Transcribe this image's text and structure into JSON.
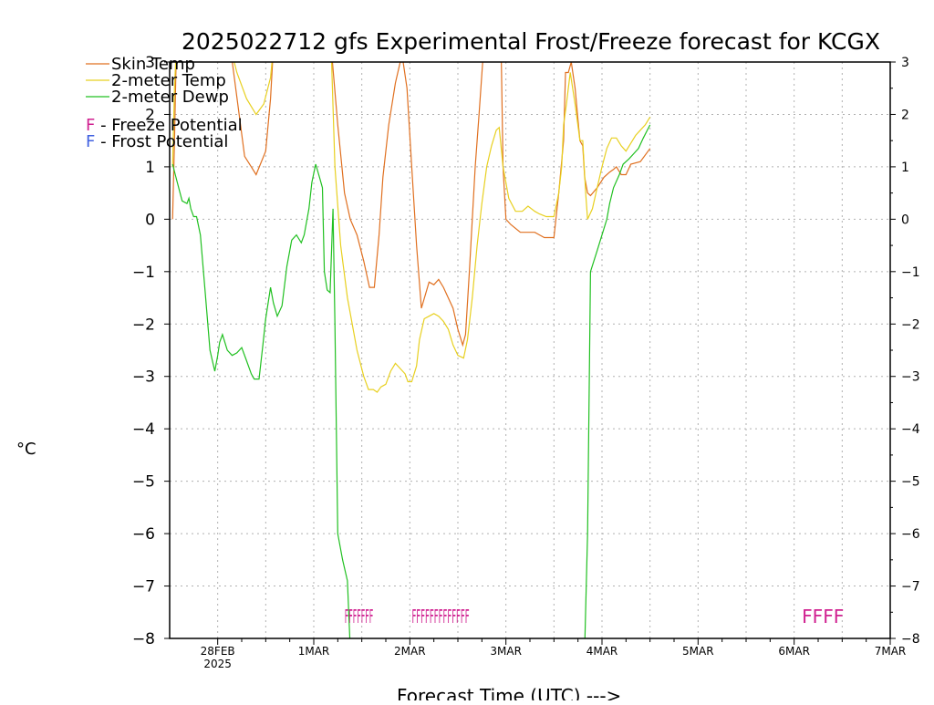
{
  "chart_data": {
    "type": "line",
    "title": "2025022712 gfs Experimental Frost/Freeze forecast for KCGX",
    "ylabel": "°C",
    "xlabel": "Forecast Time (UTC) --->",
    "ylim": [
      -8,
      3
    ],
    "xlim": [
      -0.5,
      7
    ],
    "x_unit": "days since 28FEB 2025 00Z",
    "yticks": [
      -8,
      -7,
      -6,
      -5,
      -4,
      -3,
      -2,
      -1,
      0,
      1,
      2,
      3
    ],
    "xticks": [
      {
        "x": 0,
        "label": "28FEB",
        "sublabel": "2025"
      },
      {
        "x": 1,
        "label": "1MAR"
      },
      {
        "x": 2,
        "label": "2MAR"
      },
      {
        "x": 3,
        "label": "3MAR"
      },
      {
        "x": 4,
        "label": "4MAR"
      },
      {
        "x": 5,
        "label": "5MAR"
      },
      {
        "x": 6,
        "label": "6MAR"
      },
      {
        "x": 7,
        "label": "7MAR"
      }
    ],
    "grid": true,
    "legend_position": "top-left",
    "legend": [
      {
        "label": "Skin Temp",
        "color": "#e07020"
      },
      {
        "label": "2-meter Temp",
        "color": "#e8d020"
      },
      {
        "label": "2-meter Dewp",
        "color": "#20c020"
      }
    ],
    "potential_legend": [
      {
        "letter": "F",
        "text": " - Freeze Potential",
        "color": "#d02090"
      },
      {
        "letter": "F",
        "text": " - Frost Potential",
        "color": "#4060e0"
      }
    ],
    "series": [
      {
        "name": "Skin Temp",
        "color": "#e07020",
        "points": [
          [
            -0.47,
            0.0
          ],
          [
            -0.45,
            1.5
          ],
          [
            -0.43,
            3.3
          ],
          [
            0.13,
            3.3
          ],
          [
            0.28,
            1.2
          ],
          [
            0.35,
            1.0
          ],
          [
            0.4,
            0.85
          ],
          [
            0.5,
            1.3
          ],
          [
            0.55,
            2.3
          ],
          [
            0.58,
            3.3
          ],
          [
            1.18,
            3.3
          ],
          [
            1.25,
            1.8
          ],
          [
            1.32,
            0.5
          ],
          [
            1.38,
            0.0
          ],
          [
            1.45,
            -0.3
          ],
          [
            1.52,
            -0.8
          ],
          [
            1.58,
            -1.3
          ],
          [
            1.63,
            -1.3
          ],
          [
            1.68,
            -0.3
          ],
          [
            1.72,
            0.8
          ],
          [
            1.78,
            1.8
          ],
          [
            1.85,
            2.6
          ],
          [
            1.9,
            3.0
          ],
          [
            1.93,
            3.0
          ],
          [
            1.97,
            2.5
          ],
          [
            2.02,
            1.0
          ],
          [
            2.07,
            -0.5
          ],
          [
            2.12,
            -1.7
          ],
          [
            2.2,
            -1.2
          ],
          [
            2.25,
            -1.25
          ],
          [
            2.3,
            -1.15
          ],
          [
            2.35,
            -1.3
          ],
          [
            2.45,
            -1.7
          ],
          [
            2.5,
            -2.1
          ],
          [
            2.55,
            -2.4
          ],
          [
            2.58,
            -2.2
          ],
          [
            2.62,
            -1.0
          ],
          [
            2.68,
            1.0
          ],
          [
            2.72,
            2.0
          ],
          [
            2.77,
            3.3
          ],
          [
            2.95,
            3.3
          ],
          [
            2.97,
            1.0
          ],
          [
            3.0,
            0.0
          ],
          [
            3.05,
            -0.1
          ],
          [
            3.15,
            -0.25
          ],
          [
            3.3,
            -0.25
          ],
          [
            3.35,
            -0.3
          ],
          [
            3.4,
            -0.35
          ],
          [
            3.5,
            -0.35
          ],
          [
            3.55,
            0.5
          ],
          [
            3.6,
            1.5
          ],
          [
            3.62,
            2.8
          ],
          [
            3.65,
            2.8
          ],
          [
            3.68,
            3.0
          ],
          [
            3.72,
            2.5
          ],
          [
            3.77,
            1.5
          ],
          [
            3.8,
            1.4
          ],
          [
            3.82,
            0.8
          ],
          [
            3.85,
            0.5
          ],
          [
            3.88,
            0.45
          ],
          [
            3.95,
            0.6
          ],
          [
            4.02,
            0.8
          ],
          [
            4.08,
            0.9
          ],
          [
            4.12,
            0.95
          ],
          [
            4.15,
            1.0
          ],
          [
            4.2,
            0.85
          ],
          [
            4.25,
            0.85
          ],
          [
            4.3,
            1.05
          ],
          [
            4.4,
            1.1
          ],
          [
            4.5,
            1.35
          ]
        ]
      },
      {
        "name": "2-meter Temp",
        "color": "#e8d020",
        "points": [
          [
            -0.47,
            1.0
          ],
          [
            -0.45,
            2.5
          ],
          [
            -0.43,
            3.3
          ],
          [
            0.13,
            3.3
          ],
          [
            0.2,
            2.8
          ],
          [
            0.3,
            2.3
          ],
          [
            0.4,
            2.0
          ],
          [
            0.48,
            2.2
          ],
          [
            0.55,
            2.7
          ],
          [
            0.58,
            3.3
          ],
          [
            1.18,
            3.3
          ],
          [
            1.22,
            1.0
          ],
          [
            1.28,
            -0.5
          ],
          [
            1.35,
            -1.5
          ],
          [
            1.45,
            -2.5
          ],
          [
            1.52,
            -3.0
          ],
          [
            1.57,
            -3.25
          ],
          [
            1.62,
            -3.25
          ],
          [
            1.66,
            -3.3
          ],
          [
            1.7,
            -3.2
          ],
          [
            1.75,
            -3.15
          ],
          [
            1.8,
            -2.9
          ],
          [
            1.85,
            -2.75
          ],
          [
            1.9,
            -2.85
          ],
          [
            1.95,
            -2.95
          ],
          [
            1.98,
            -3.1
          ],
          [
            2.02,
            -3.1
          ],
          [
            2.07,
            -2.8
          ],
          [
            2.1,
            -2.3
          ],
          [
            2.15,
            -1.9
          ],
          [
            2.2,
            -1.85
          ],
          [
            2.25,
            -1.8
          ],
          [
            2.3,
            -1.85
          ],
          [
            2.35,
            -1.95
          ],
          [
            2.4,
            -2.1
          ],
          [
            2.45,
            -2.4
          ],
          [
            2.5,
            -2.6
          ],
          [
            2.56,
            -2.65
          ],
          [
            2.6,
            -2.3
          ],
          [
            2.65,
            -1.5
          ],
          [
            2.7,
            -0.5
          ],
          [
            2.75,
            0.3
          ],
          [
            2.8,
            1.0
          ],
          [
            2.85,
            1.4
          ],
          [
            2.9,
            1.7
          ],
          [
            2.93,
            1.75
          ],
          [
            2.97,
            1.0
          ],
          [
            3.03,
            0.4
          ],
          [
            3.1,
            0.15
          ],
          [
            3.17,
            0.15
          ],
          [
            3.23,
            0.25
          ],
          [
            3.3,
            0.15
          ],
          [
            3.35,
            0.1
          ],
          [
            3.42,
            0.05
          ],
          [
            3.5,
            0.05
          ],
          [
            3.55,
            0.5
          ],
          [
            3.58,
            1.0
          ],
          [
            3.6,
            1.8
          ],
          [
            3.63,
            2.2
          ],
          [
            3.67,
            2.8
          ],
          [
            3.72,
            2.2
          ],
          [
            3.77,
            1.5
          ],
          [
            3.8,
            1.5
          ],
          [
            3.83,
            0.5
          ],
          [
            3.85,
            0.0
          ],
          [
            3.9,
            0.2
          ],
          [
            3.95,
            0.6
          ],
          [
            4.0,
            1.0
          ],
          [
            4.05,
            1.35
          ],
          [
            4.1,
            1.55
          ],
          [
            4.15,
            1.55
          ],
          [
            4.2,
            1.4
          ],
          [
            4.25,
            1.3
          ],
          [
            4.3,
            1.45
          ],
          [
            4.35,
            1.6
          ],
          [
            4.4,
            1.7
          ],
          [
            4.45,
            1.8
          ],
          [
            4.5,
            1.95
          ]
        ]
      },
      {
        "name": "2-meter Dewp",
        "color": "#20c020",
        "points": [
          [
            -0.47,
            1.05
          ],
          [
            -0.42,
            0.7
          ],
          [
            -0.37,
            0.35
          ],
          [
            -0.32,
            0.3
          ],
          [
            -0.3,
            0.4
          ],
          [
            -0.28,
            0.2
          ],
          [
            -0.25,
            0.05
          ],
          [
            -0.22,
            0.05
          ],
          [
            -0.18,
            -0.3
          ],
          [
            -0.13,
            -1.4
          ],
          [
            -0.08,
            -2.5
          ],
          [
            -0.03,
            -2.9
          ],
          [
            0.0,
            -2.6
          ],
          [
            0.02,
            -2.35
          ],
          [
            0.05,
            -2.2
          ],
          [
            0.1,
            -2.5
          ],
          [
            0.15,
            -2.6
          ],
          [
            0.2,
            -2.55
          ],
          [
            0.25,
            -2.45
          ],
          [
            0.3,
            -2.7
          ],
          [
            0.35,
            -2.95
          ],
          [
            0.38,
            -3.05
          ],
          [
            0.43,
            -3.05
          ],
          [
            0.47,
            -2.4
          ],
          [
            0.5,
            -1.9
          ],
          [
            0.55,
            -1.3
          ],
          [
            0.58,
            -1.6
          ],
          [
            0.62,
            -1.85
          ],
          [
            0.67,
            -1.65
          ],
          [
            0.72,
            -0.9
          ],
          [
            0.77,
            -0.4
          ],
          [
            0.82,
            -0.3
          ],
          [
            0.87,
            -0.45
          ],
          [
            0.9,
            -0.3
          ],
          [
            0.95,
            0.2
          ],
          [
            0.98,
            0.7
          ],
          [
            1.02,
            1.05
          ],
          [
            1.06,
            0.8
          ],
          [
            1.09,
            0.6
          ],
          [
            1.11,
            -1.0
          ],
          [
            1.14,
            -1.35
          ],
          [
            1.17,
            -1.4
          ],
          [
            1.2,
            0.2
          ],
          [
            1.22,
            -2.0
          ],
          [
            1.25,
            -6.0
          ],
          [
            1.3,
            -6.5
          ],
          [
            1.35,
            -6.9
          ],
          [
            1.38,
            -8.2
          ],
          [
            3.82,
            -8.2
          ],
          [
            3.85,
            -6.0
          ],
          [
            3.88,
            -1.0
          ],
          [
            3.95,
            -0.6
          ],
          [
            4.0,
            -0.3
          ],
          [
            4.05,
            0.0
          ],
          [
            4.08,
            0.3
          ],
          [
            4.12,
            0.6
          ],
          [
            4.18,
            0.85
          ],
          [
            4.22,
            1.05
          ],
          [
            4.28,
            1.15
          ],
          [
            4.33,
            1.25
          ],
          [
            4.38,
            1.35
          ],
          [
            4.43,
            1.55
          ],
          [
            4.5,
            1.8
          ]
        ]
      }
    ],
    "freeze_flags": [
      {
        "x_start": 1.32,
        "x_end": 1.62,
        "marks": 7,
        "text": "FFFFFFF"
      },
      {
        "x_start": 2.02,
        "x_end": 2.62,
        "marks": 13,
        "text": "FFFFFFFFFFFFF"
      },
      {
        "x_start": 6.08,
        "x_end": 6.52,
        "marks": 4,
        "text": "FFFF"
      }
    ],
    "flag_y": -7.55
  }
}
